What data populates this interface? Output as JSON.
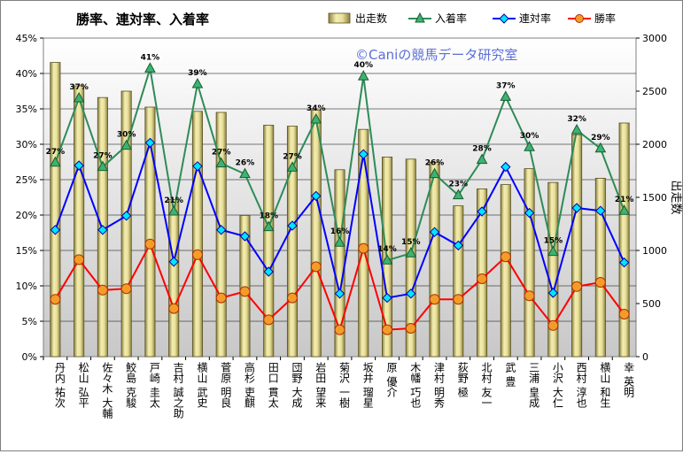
{
  "chart_data": {
    "type": "bar",
    "title": "勝率、連対率、入着率",
    "watermark": "©Caniの競馬データ研究室",
    "xlabel": "",
    "ylabel": "",
    "y2label": "出走数",
    "ylim": [
      0,
      45
    ],
    "y2lim": [
      0,
      3000
    ],
    "yticks": [
      "0%",
      "5%",
      "10%",
      "15%",
      "20%",
      "25%",
      "30%",
      "35%",
      "40%",
      "45%"
    ],
    "y2ticks": [
      "0",
      "500",
      "1000",
      "1500",
      "2000",
      "2500",
      "3000"
    ],
    "legend_position": "top-right",
    "categories": [
      "丹内 祐次",
      "松山 弘平",
      "佐々木 大輔",
      "鮫島 克駿",
      "戸崎 圭太",
      "吉村 誠之助",
      "横山 武史",
      "菅原 明良",
      "高杉 吏麒",
      "田口 貫太",
      "団野 大成",
      "岩田 望来",
      "菊沢 一樹",
      "坂井 瑠星",
      "原 優介",
      "木幡 巧也",
      "津村 明秀",
      "荻野 極",
      "北村 友一",
      "武 豊",
      "三浦 皇成",
      "小沢 大仁",
      "西村 淳也",
      "横山 和生",
      "幸 英明"
    ],
    "labels": [
      "27%",
      "37%",
      "27%",
      "30%",
      "41%",
      "21%",
      "39%",
      "27%",
      "26%",
      "18%",
      "27%",
      "34%",
      "16%",
      "40%",
      "14%",
      "15%",
      "26%",
      "23%",
      "28%",
      "37%",
      "30%",
      "15%",
      "32%",
      "29%",
      "21%"
    ],
    "series": [
      {
        "name": "出走数",
        "axis": "right",
        "color": "#e8e09a",
        "values": [
          2770,
          2550,
          2440,
          2500,
          2350,
          1480,
          2310,
          2300,
          1330,
          2180,
          2170,
          2320,
          1760,
          2140,
          1880,
          1860,
          1830,
          1420,
          1580,
          1620,
          1770,
          1640,
          2090,
          1680,
          2200
        ]
      },
      {
        "name": "入着率",
        "axis": "left",
        "color": "#2e8b57",
        "values": [
          27.4,
          36.5,
          26.8,
          29.8,
          40.7,
          20.5,
          38.5,
          27.3,
          25.8,
          18.3,
          26.7,
          33.5,
          16.1,
          39.6,
          13.6,
          14.6,
          25.8,
          22.8,
          27.8,
          36.7,
          29.6,
          14.8,
          32.0,
          29.4,
          20.6
        ]
      },
      {
        "name": "連対率",
        "axis": "left",
        "color": "#0000ff",
        "values": [
          17.9,
          27.0,
          17.9,
          19.9,
          30.2,
          13.4,
          26.9,
          17.9,
          17.0,
          12.0,
          18.5,
          22.7,
          8.9,
          28.6,
          8.3,
          8.9,
          17.6,
          15.7,
          20.5,
          26.8,
          20.3,
          9.0,
          21.0,
          20.6,
          13.3
        ]
      },
      {
        "name": "勝率",
        "axis": "left",
        "color": "#ff0000",
        "values": [
          8.1,
          13.7,
          9.4,
          9.6,
          15.9,
          6.8,
          14.4,
          8.3,
          9.2,
          5.2,
          8.3,
          12.7,
          3.8,
          15.3,
          3.8,
          4.0,
          8.1,
          8.1,
          11.0,
          14.1,
          8.6,
          4.4,
          9.9,
          10.5,
          6.0
        ]
      }
    ]
  }
}
